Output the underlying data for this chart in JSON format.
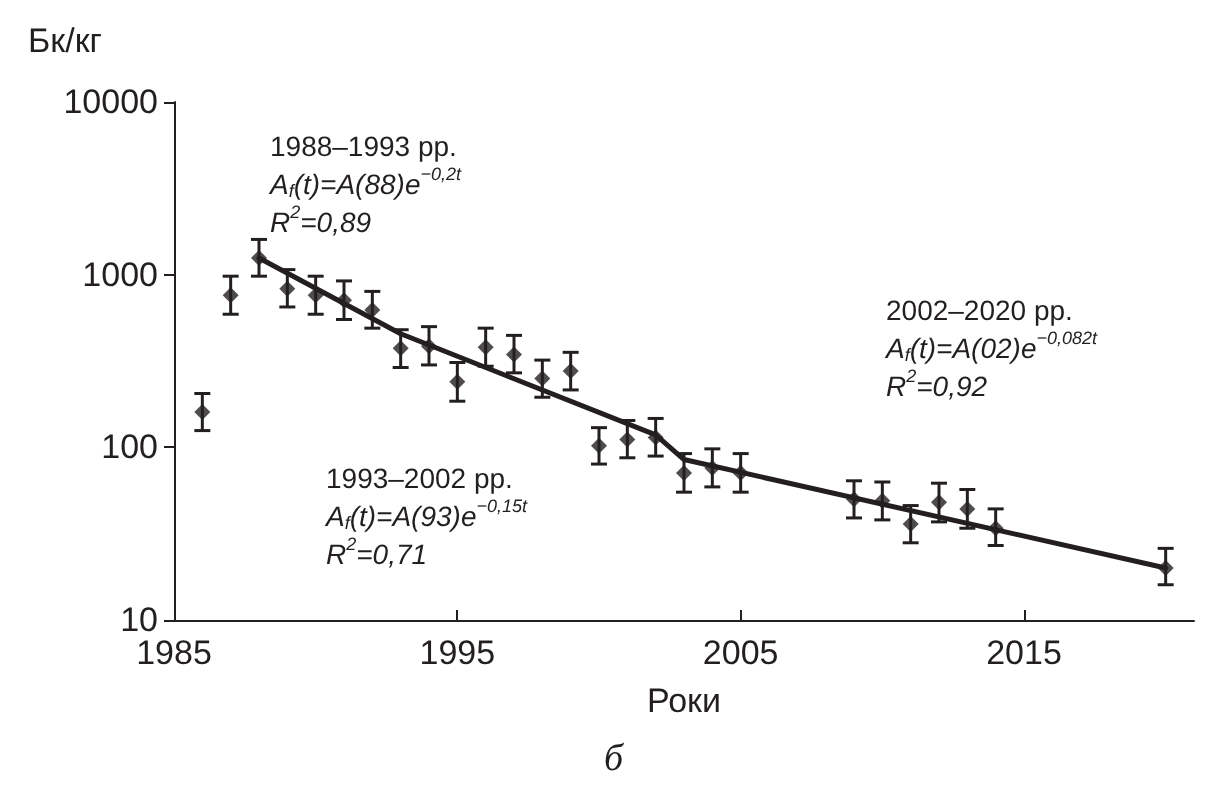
{
  "chart_data": {
    "type": "scatter",
    "ylabel": "Бк/кг",
    "xlabel": "Роки",
    "x": [
      1986,
      1987,
      1988,
      1989,
      1990,
      1991,
      1992,
      1993,
      1994,
      1995,
      1996,
      1997,
      1998,
      1999,
      2000,
      2001,
      2002,
      2003,
      2004,
      2005,
      2009,
      2010,
      2011,
      2012,
      2013,
      2014,
      2020
    ],
    "series": [
      {
        "color": "#231f20",
        "marker": "diamond",
        "values": [
          160,
          760,
          1250,
          830,
          760,
          710,
          625,
          375,
          385,
          240,
          380,
          345,
          250,
          277,
          102,
          111,
          114,
          71,
          76,
          71,
          50,
          49,
          36,
          48,
          44,
          34,
          20
        ],
        "errors": [
          [
            125,
            205
          ],
          [
            590,
            980
          ],
          [
            980,
            1600
          ],
          [
            650,
            1070
          ],
          [
            590,
            980
          ],
          [
            550,
            920
          ],
          [
            490,
            800
          ],
          [
            290,
            480
          ],
          [
            300,
            500
          ],
          [
            185,
            310
          ],
          [
            295,
            490
          ],
          [
            270,
            445
          ],
          [
            195,
            320
          ],
          [
            215,
            355
          ],
          [
            80,
            130
          ],
          [
            87,
            143
          ],
          [
            89,
            147
          ],
          [
            55,
            92
          ],
          [
            59,
            98
          ],
          [
            55,
            92
          ],
          [
            39,
            64
          ],
          [
            38,
            63
          ],
          [
            28,
            46
          ],
          [
            37,
            62
          ],
          [
            34,
            57
          ],
          [
            27,
            44
          ],
          [
            16,
            26
          ]
        ]
      },
      {
        "type": "line",
        "color": "#231f20",
        "marker": "none",
        "line_style": "solid",
        "x": [
          1988,
          1993,
          2002,
          2003,
          2020
        ],
        "values": [
          1250,
          455,
          118,
          85,
          20
        ]
      }
    ],
    "log": "y",
    "xlim": [
      1985,
      2021
    ],
    "xticks": [
      1985,
      1995,
      2005,
      2015
    ],
    "ylim": [
      10,
      10000
    ],
    "yticks": [
      10,
      100,
      1000,
      10000
    ],
    "grid": false,
    "annotations": [
      "1988–1993 рр.\nA$_{f}$(t)=A(88)e$^{−0,2t}$\nR$^{2}$=0,89",
      "1993–2002 рр.\nA$_{f}$(t)=A(93)e$^{−0,15t}$\nR$^{2}$=0,71",
      "2002–2020 рр.\nA$_{f}$(t)=A(02)e$^{−0,082t}$\nR$^{2}$=0,92",
      "б"
    ]
  }
}
